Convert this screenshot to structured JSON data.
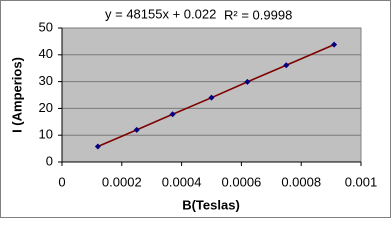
{
  "chart_data": {
    "type": "scatter",
    "x_label": "B(Teslas)",
    "y_label": "I (Amperios)",
    "annotations": [
      "y = 48155x + 0.022",
      "R² = 0.9998"
    ],
    "series": [
      {
        "color": "#000080",
        "line_color": "#7f0000",
        "x": [
          0.00012,
          0.00025,
          0.00037,
          0.0005,
          0.00062,
          0.00075,
          0.00091
        ],
        "values": [
          5.8,
          12,
          17.8,
          24,
          29.9,
          36.1,
          43.8
        ]
      }
    ],
    "xlim": [
      0,
      0.001
    ],
    "xticks": [
      0,
      0.0002,
      0.0004,
      0.0006,
      0.0008,
      0.001
    ],
    "ylim": [
      0,
      50
    ],
    "yticks": [
      0,
      10,
      20,
      30,
      40,
      50
    ],
    "grid": true
  }
}
